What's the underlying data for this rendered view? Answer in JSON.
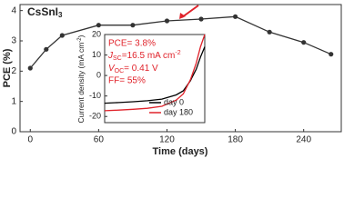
{
  "chart_data": [
    {
      "type": "line",
      "label": {
        "text": "CsSnI",
        "sub": "3"
      },
      "x_label": "Time (days)",
      "y_label": "PCE (%)",
      "x": [
        0,
        14,
        28,
        60,
        90,
        120,
        150,
        180,
        210,
        240,
        264
      ],
      "series": [
        {
          "name": null,
          "color": "#333333",
          "values": [
            2.1,
            2.72,
            3.18,
            3.52,
            3.52,
            3.66,
            3.72,
            3.8,
            3.29,
            2.95,
            2.56
          ]
        }
      ],
      "xlim": [
        -9,
        273
      ],
      "ylim": [
        0,
        4.2
      ],
      "xticks": [
        0,
        60,
        120,
        180,
        240
      ],
      "yticks": [
        0,
        1,
        2,
        3,
        4
      ]
    },
    {
      "type": "line",
      "y_label": {
        "text": "Current density (mA cm",
        "sup": "-2",
        "end": ")"
      },
      "annotations": {
        "pce": "PCE= 3.8%",
        "jsc": {
          "j": "J",
          "sub": "SC",
          "text": "=16.5 mA cm",
          "sup": "-2"
        },
        "voc": {
          "v": "V",
          "sub": "OC",
          "text": "= 0.41 V"
        },
        "ff": "FF= 55%"
      },
      "x": [
        -0.2,
        -0.1,
        0,
        0.1,
        0.2,
        0.3,
        0.35,
        0.4,
        0.41,
        0.44,
        0.47,
        0.5
      ],
      "series": [
        {
          "name": "day 0",
          "color": "#000000",
          "values": [
            -13.5,
            -13.2,
            -12.8,
            -12.3,
            -11.5,
            -9.5,
            -7.5,
            -2.5,
            -1,
            3,
            9,
            14
          ]
        },
        {
          "name": "day 180",
          "color": "#e0222a",
          "values": [
            -17.2,
            -16.9,
            -16.5,
            -16,
            -15,
            -12,
            -9,
            -2,
            0,
            6,
            14,
            20
          ]
        }
      ],
      "xlim": [
        -0.2,
        0.5
      ],
      "ylim": [
        -23,
        20
      ],
      "yticks": [
        -20,
        -10,
        0,
        10,
        20
      ],
      "legend": "lower right"
    }
  ]
}
